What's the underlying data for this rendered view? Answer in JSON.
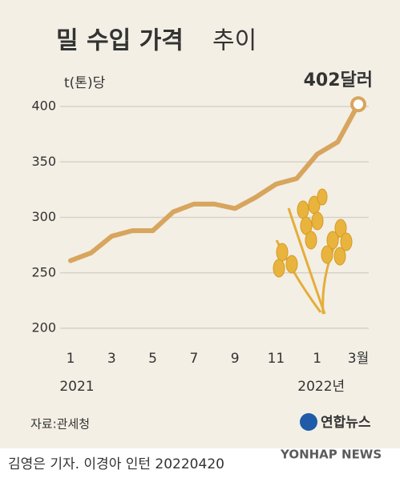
{
  "chart_data": {
    "type": "line",
    "title": "밀 수입 가격",
    "title_suffix": "추이",
    "y_label": "t(톤)당",
    "categories": [
      "1",
      null,
      "3",
      null,
      "5",
      null,
      "7",
      null,
      "9",
      null,
      "11",
      null,
      "1",
      null,
      "3월"
    ],
    "years": [
      "2021",
      "2022년"
    ],
    "values": [
      261,
      268,
      283,
      288,
      288,
      305,
      312,
      312,
      308,
      318,
      330,
      335,
      357,
      368,
      402
    ],
    "value_labels": [
      null,
      null,
      null,
      null,
      null,
      null,
      null,
      null,
      null,
      null,
      null,
      null,
      null,
      null,
      "402달러"
    ],
    "color": "#d8a55e",
    "ylim": [
      200,
      400
    ],
    "yticks": [
      200,
      250,
      300,
      350,
      400
    ],
    "grid": true
  },
  "source": "자료:관세청",
  "logo": "연합뉴스",
  "credit": "김영은 기자. 이경아 인턴  20220420",
  "watermark": "YONHAP NEWS"
}
